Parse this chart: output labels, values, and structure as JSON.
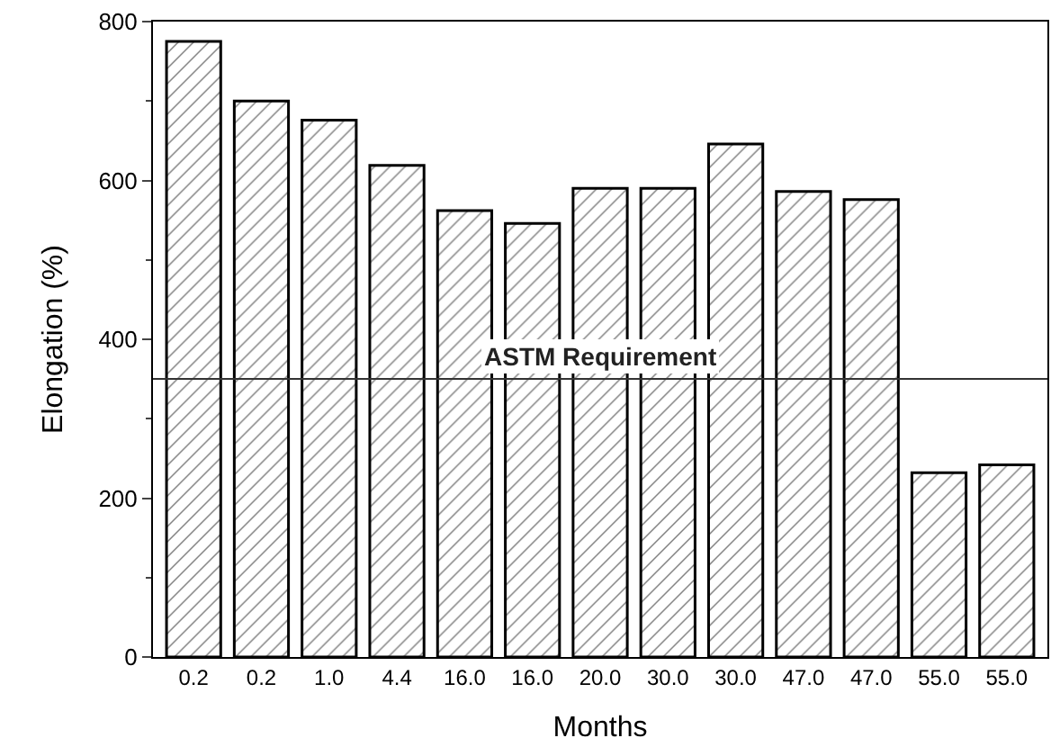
{
  "chart_data": {
    "type": "bar",
    "xlabel": "Months",
    "ylabel": "Elongation (%)",
    "categories": [
      "0.2",
      "0.2",
      "1.0",
      "4.4",
      "16.0",
      "16.0",
      "20.0",
      "30.0",
      "30.0",
      "47.0",
      "47.0",
      "55.0",
      "55.0"
    ],
    "values": [
      775,
      700,
      676,
      619,
      562,
      546,
      590,
      590,
      646,
      586,
      576,
      232,
      242
    ],
    "color": "#000000",
    "ylim": [
      0,
      800
    ],
    "yticks": [
      0,
      200,
      400,
      600,
      800
    ],
    "ref_lines": [
      {
        "axis": "y",
        "value": 350,
        "label": "ASTM Requirement",
        "color": "#333333",
        "line_style": "solid"
      }
    ]
  }
}
